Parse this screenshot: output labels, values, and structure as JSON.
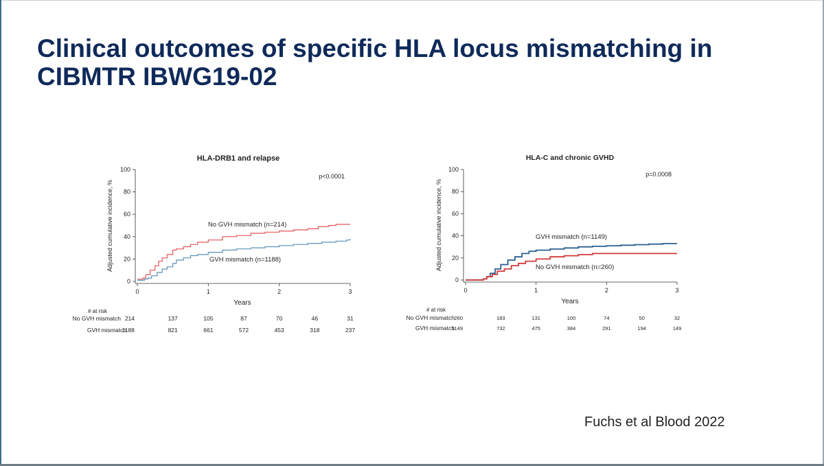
{
  "slide": {
    "title": "Clinical outcomes of specific HLA locus mismatching in CIBMTR IBWG19-02",
    "citation": "Fuchs et al Blood 2022"
  },
  "colors": {
    "title": "#0f2a5a",
    "red": "#e25555",
    "blue": "#5a91b8",
    "navy": "#2a5f8f",
    "darkred": "#d43838"
  },
  "chart_data": [
    {
      "type": "line",
      "title": "HLA-DRB1 and relapse",
      "pvalue": "p<0.0001",
      "xlabel": "Years",
      "ylabel": "Adjusted cumulative incidence, %",
      "xlim": [
        0,
        3
      ],
      "ylim": [
        0,
        100
      ],
      "xticks": [
        0,
        1,
        2,
        3
      ],
      "yticks": [
        0,
        20,
        40,
        60,
        80,
        100
      ],
      "series": [
        {
          "name": "No GVH mismatch (n=214)",
          "color": "#e25555",
          "x": [
            0,
            0.08,
            0.12,
            0.18,
            0.25,
            0.3,
            0.35,
            0.42,
            0.5,
            0.55,
            0.65,
            0.75,
            0.85,
            1.0,
            1.2,
            1.4,
            1.6,
            1.8,
            2.0,
            2.2,
            2.4,
            2.55,
            2.7,
            2.8,
            3.0
          ],
          "y": [
            2,
            3,
            6,
            10,
            14,
            18,
            21,
            24,
            28,
            29,
            31,
            33,
            35,
            37,
            40,
            41,
            43,
            44,
            45,
            46,
            47,
            49,
            50,
            51,
            51
          ]
        },
        {
          "name": "GVH mismatch (n=1188)",
          "color": "#5a91b8",
          "x": [
            0,
            0.1,
            0.15,
            0.2,
            0.28,
            0.35,
            0.42,
            0.5,
            0.55,
            0.65,
            0.75,
            0.85,
            1.0,
            1.2,
            1.4,
            1.6,
            1.8,
            2.0,
            2.2,
            2.4,
            2.6,
            2.8,
            2.95,
            3.0
          ],
          "y": [
            1,
            2,
            3,
            5,
            8,
            11,
            13,
            16,
            19,
            21,
            23,
            24,
            26,
            28,
            29,
            30,
            31,
            32,
            33,
            34,
            35,
            36,
            37,
            38
          ]
        }
      ],
      "at_risk": {
        "heading": "# at risk",
        "rows": [
          {
            "label": "No GVH mismatch",
            "values": [
              "214",
              "137",
              "105",
              "87",
              "70",
              "46",
              "31"
            ]
          },
          {
            "label": "GVH mismatch",
            "values": [
              "1188",
              "821",
              "661",
              "572",
              "453",
              "318",
              "237"
            ]
          }
        ]
      }
    },
    {
      "type": "line",
      "title": "HLA-C and chronic GVHD",
      "pvalue": "p=0.0008",
      "xlabel": "Years",
      "ylabel": "Adjusted cumulative incidence, %",
      "xlim": [
        0,
        3
      ],
      "ylim": [
        0,
        100
      ],
      "xticks": [
        0,
        1,
        2,
        3
      ],
      "yticks": [
        0,
        20,
        40,
        60,
        80,
        100
      ],
      "series": [
        {
          "name": "GVH mismatch (n=1149)",
          "color": "#2a5f8f",
          "x": [
            0,
            0.1,
            0.2,
            0.25,
            0.3,
            0.35,
            0.42,
            0.5,
            0.6,
            0.7,
            0.8,
            0.9,
            1.0,
            1.2,
            1.4,
            1.6,
            1.8,
            2.0,
            2.2,
            2.4,
            2.6,
            2.8,
            3.0
          ],
          "y": [
            0,
            0,
            0,
            1,
            3,
            6,
            10,
            14,
            18,
            21,
            24,
            26,
            27,
            28,
            29,
            30,
            30.5,
            31,
            31.5,
            32,
            32.5,
            33,
            33
          ]
        },
        {
          "name": "No GVH mismatch (n=260)",
          "color": "#d43838",
          "x": [
            0,
            0.1,
            0.2,
            0.25,
            0.3,
            0.38,
            0.45,
            0.55,
            0.65,
            0.75,
            0.85,
            1.0,
            1.2,
            1.4,
            1.6,
            1.8,
            2.0,
            2.2,
            2.4,
            2.6,
            2.8,
            3.0
          ],
          "y": [
            0,
            0,
            0,
            1,
            3,
            5,
            8,
            10,
            13,
            15,
            17,
            19,
            21,
            22,
            23,
            24,
            24,
            24,
            24,
            24,
            24,
            24
          ]
        }
      ],
      "at_risk": {
        "heading": "# at risk",
        "rows": [
          {
            "label": "No GVH mismatch",
            "values": [
              "260",
              "183",
              "131",
              "100",
              "74",
              "50",
              "32"
            ]
          },
          {
            "label": "GVH mismatch",
            "values": [
              "1149",
              "732",
              "475",
              "384",
              "291",
              "194",
              "149"
            ]
          }
        ]
      }
    }
  ]
}
